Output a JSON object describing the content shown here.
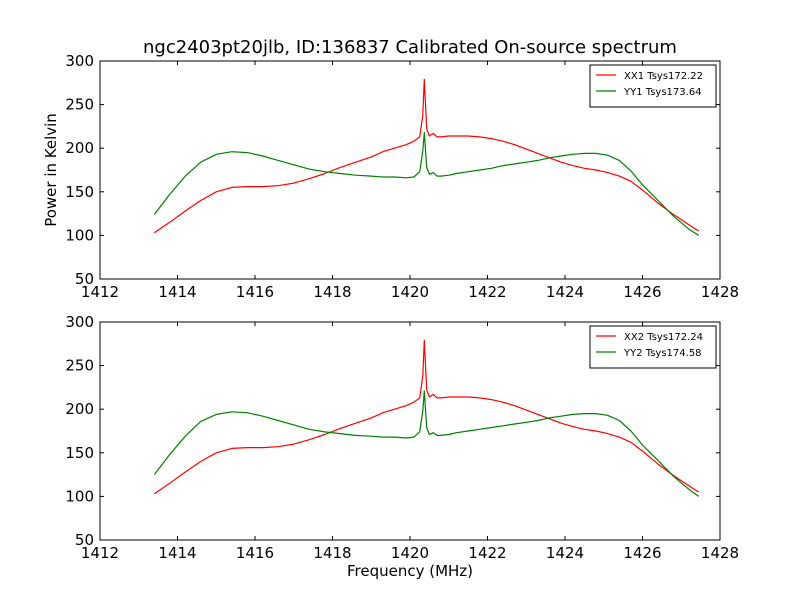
{
  "title": "ngc2403pt20jlb, ID:136837 Calibrated On-source spectrum",
  "chart_data": [
    {
      "type": "line",
      "title": "ngc2403pt20jlb, ID:136837 Calibrated On-source spectrum",
      "xlabel": "",
      "ylabel": "Power in Kelvin",
      "xlim": [
        1412,
        1428
      ],
      "ylim": [
        50,
        300
      ],
      "xticks": [
        "1412",
        "1414",
        "1416",
        "1418",
        "1420",
        "1422",
        "1424",
        "1426",
        "1428"
      ],
      "yticks": [
        "50",
        "100",
        "150",
        "200",
        "250",
        "300"
      ],
      "legend_position": "top-right",
      "grid": false,
      "series": [
        {
          "name": "XX1 Tsys172.22",
          "color": "#ff0000",
          "x": [
            1413.4,
            1413.8,
            1414.2,
            1414.6,
            1415.0,
            1415.4,
            1415.8,
            1416.2,
            1416.6,
            1417.0,
            1417.4,
            1417.8,
            1418.2,
            1418.6,
            1419.0,
            1419.3,
            1419.6,
            1419.9,
            1420.1,
            1420.25,
            1420.33,
            1420.37,
            1420.43,
            1420.5,
            1420.6,
            1420.7,
            1420.8,
            1421.0,
            1421.2,
            1421.5,
            1421.8,
            1422.1,
            1422.4,
            1422.7,
            1423.0,
            1423.3,
            1423.6,
            1423.9,
            1424.2,
            1424.5,
            1424.8,
            1425.1,
            1425.4,
            1425.7,
            1426.0,
            1426.4,
            1426.8,
            1427.2,
            1427.45
          ],
          "values": [
            103,
            115,
            128,
            140,
            150,
            155,
            156,
            156,
            157,
            160,
            165,
            171,
            178,
            184,
            190,
            196,
            200,
            204,
            208,
            213,
            238,
            279,
            222,
            214,
            217,
            213,
            213,
            214,
            214,
            214,
            213,
            211,
            208,
            204,
            199,
            194,
            189,
            184,
            180,
            177,
            175,
            172,
            168,
            162,
            152,
            137,
            124,
            112,
            105
          ]
        },
        {
          "name": "YY1 Tsys173.64",
          "color": "#008000",
          "x": [
            1413.4,
            1413.8,
            1414.2,
            1414.6,
            1415.0,
            1415.4,
            1415.8,
            1416.2,
            1416.6,
            1417.0,
            1417.4,
            1417.8,
            1418.2,
            1418.6,
            1419.0,
            1419.3,
            1419.6,
            1419.9,
            1420.1,
            1420.25,
            1420.33,
            1420.37,
            1420.43,
            1420.5,
            1420.6,
            1420.7,
            1420.8,
            1421.0,
            1421.2,
            1421.5,
            1421.8,
            1422.1,
            1422.4,
            1422.7,
            1423.0,
            1423.3,
            1423.6,
            1423.9,
            1424.2,
            1424.5,
            1424.8,
            1425.1,
            1425.4,
            1425.7,
            1426.0,
            1426.4,
            1426.8,
            1427.2,
            1427.45
          ],
          "values": [
            124,
            147,
            168,
            184,
            193,
            196,
            195,
            191,
            186,
            181,
            176,
            173,
            171,
            169,
            168,
            167,
            167,
            166,
            167,
            173,
            197,
            218,
            178,
            170,
            172,
            168,
            168,
            169,
            171,
            173,
            175,
            177,
            180,
            182,
            184,
            186,
            189,
            191,
            193,
            194,
            194,
            192,
            186,
            174,
            158,
            140,
            122,
            107,
            100
          ]
        }
      ]
    },
    {
      "type": "line",
      "title": "",
      "xlabel": "Frequency (MHz)",
      "ylabel": "",
      "xlim": [
        1412,
        1428
      ],
      "ylim": [
        50,
        300
      ],
      "xticks": [
        "1412",
        "1414",
        "1416",
        "1418",
        "1420",
        "1422",
        "1424",
        "1426",
        "1428"
      ],
      "yticks": [
        "50",
        "100",
        "150",
        "200",
        "250",
        "300"
      ],
      "legend_position": "top-right",
      "grid": false,
      "series": [
        {
          "name": "XX2 Tsys172.24",
          "color": "#ff0000",
          "x": [
            1413.4,
            1413.8,
            1414.2,
            1414.6,
            1415.0,
            1415.4,
            1415.8,
            1416.2,
            1416.6,
            1417.0,
            1417.4,
            1417.8,
            1418.2,
            1418.6,
            1419.0,
            1419.3,
            1419.6,
            1419.9,
            1420.1,
            1420.25,
            1420.33,
            1420.37,
            1420.43,
            1420.5,
            1420.6,
            1420.7,
            1420.8,
            1421.0,
            1421.2,
            1421.5,
            1421.8,
            1422.1,
            1422.4,
            1422.7,
            1423.0,
            1423.3,
            1423.6,
            1423.9,
            1424.2,
            1424.5,
            1424.8,
            1425.1,
            1425.4,
            1425.7,
            1426.0,
            1426.4,
            1426.8,
            1427.2,
            1427.45
          ],
          "values": [
            103,
            115,
            128,
            140,
            150,
            155,
            156,
            156,
            157,
            160,
            165,
            171,
            178,
            184,
            190,
            196,
            200,
            204,
            208,
            213,
            238,
            279,
            222,
            214,
            217,
            213,
            213,
            214,
            214,
            214,
            213,
            211,
            208,
            204,
            199,
            194,
            189,
            184,
            180,
            177,
            175,
            172,
            168,
            162,
            152,
            137,
            124,
            112,
            105
          ]
        },
        {
          "name": "YY2 Tsys174.58",
          "color": "#008000",
          "x": [
            1413.4,
            1413.8,
            1414.2,
            1414.6,
            1415.0,
            1415.4,
            1415.8,
            1416.2,
            1416.6,
            1417.0,
            1417.4,
            1417.8,
            1418.2,
            1418.6,
            1419.0,
            1419.3,
            1419.6,
            1419.9,
            1420.1,
            1420.25,
            1420.33,
            1420.37,
            1420.43,
            1420.5,
            1420.6,
            1420.7,
            1420.8,
            1421.0,
            1421.2,
            1421.5,
            1421.8,
            1422.1,
            1422.4,
            1422.7,
            1423.0,
            1423.3,
            1423.6,
            1423.9,
            1424.2,
            1424.5,
            1424.8,
            1425.1,
            1425.4,
            1425.7,
            1426.0,
            1426.4,
            1426.8,
            1427.2,
            1427.45
          ],
          "values": [
            125,
            148,
            169,
            186,
            194,
            197,
            196,
            192,
            187,
            182,
            177,
            174,
            172,
            170,
            169,
            168,
            168,
            167,
            168,
            174,
            198,
            221,
            179,
            171,
            173,
            170,
            170,
            171,
            173,
            175,
            177,
            179,
            181,
            183,
            185,
            187,
            190,
            192,
            194,
            195,
            195,
            193,
            187,
            175,
            159,
            141,
            123,
            108,
            100
          ]
        }
      ]
    }
  ]
}
